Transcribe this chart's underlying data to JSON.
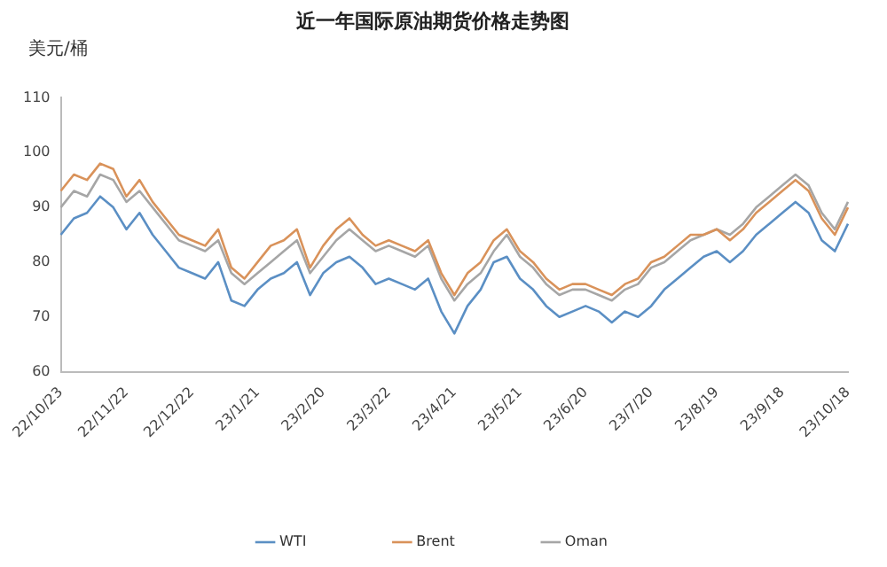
{
  "chart_data": {
    "type": "line",
    "title": "近一年国际原油期货价格走势图",
    "ylabel": "美元/桶",
    "categories": [
      "22/10/23",
      null,
      null,
      null,
      null,
      "22/11/22",
      null,
      null,
      null,
      null,
      "22/12/22",
      null,
      null,
      null,
      null,
      "23/1/21",
      null,
      null,
      null,
      null,
      "23/2/20",
      null,
      null,
      null,
      null,
      "23/3/22",
      null,
      null,
      null,
      null,
      "23/4/21",
      null,
      null,
      null,
      null,
      "23/5/21",
      null,
      null,
      null,
      null,
      "23/6/20",
      null,
      null,
      null,
      null,
      "23/7/20",
      null,
      null,
      null,
      null,
      "23/8/19",
      null,
      null,
      null,
      null,
      "23/9/18",
      null,
      null,
      null,
      null,
      "23/10/18"
    ],
    "series": [
      {
        "name": "WTI",
        "color": "#5b8fc4",
        "values": [
          85,
          88,
          89,
          92,
          90,
          86,
          89,
          85,
          82,
          79,
          78,
          77,
          80,
          73,
          72,
          75,
          77,
          78,
          80,
          74,
          78,
          80,
          81,
          79,
          76,
          77,
          76,
          75,
          77,
          71,
          67,
          72,
          75,
          80,
          81,
          77,
          75,
          72,
          70,
          71,
          72,
          71,
          69,
          71,
          70,
          72,
          75,
          77,
          79,
          81,
          82,
          80,
          82,
          85,
          87,
          89,
          91,
          89,
          84,
          82,
          87
        ]
      },
      {
        "name": "Brent",
        "color": "#d9925a",
        "values": [
          93,
          96,
          95,
          98,
          97,
          92,
          95,
          91,
          88,
          85,
          84,
          83,
          86,
          79,
          77,
          80,
          83,
          84,
          86,
          79,
          83,
          86,
          88,
          85,
          83,
          84,
          83,
          82,
          84,
          78,
          74,
          78,
          80,
          84,
          86,
          82,
          80,
          77,
          75,
          76,
          76,
          75,
          74,
          76,
          77,
          80,
          81,
          83,
          85,
          85,
          86,
          84,
          86,
          89,
          91,
          93,
          95,
          93,
          88,
          85,
          90
        ]
      },
      {
        "name": "Oman",
        "color": "#a6a6a6",
        "values": [
          90,
          93,
          92,
          96,
          95,
          91,
          93,
          90,
          87,
          84,
          83,
          82,
          84,
          78,
          76,
          78,
          80,
          82,
          84,
          78,
          81,
          84,
          86,
          84,
          82,
          83,
          82,
          81,
          83,
          77,
          73,
          76,
          78,
          82,
          85,
          81,
          79,
          76,
          74,
          75,
          75,
          74,
          73,
          75,
          76,
          79,
          80,
          82,
          84,
          85,
          86,
          85,
          87,
          90,
          92,
          94,
          96,
          94,
          89,
          86,
          91
        ]
      }
    ],
    "ylim": [
      60,
      110
    ],
    "yticks": [
      60,
      70,
      80,
      90,
      100,
      110
    ],
    "grid": false,
    "legend": "bottom",
    "marker": "none",
    "line_style": "solid"
  }
}
